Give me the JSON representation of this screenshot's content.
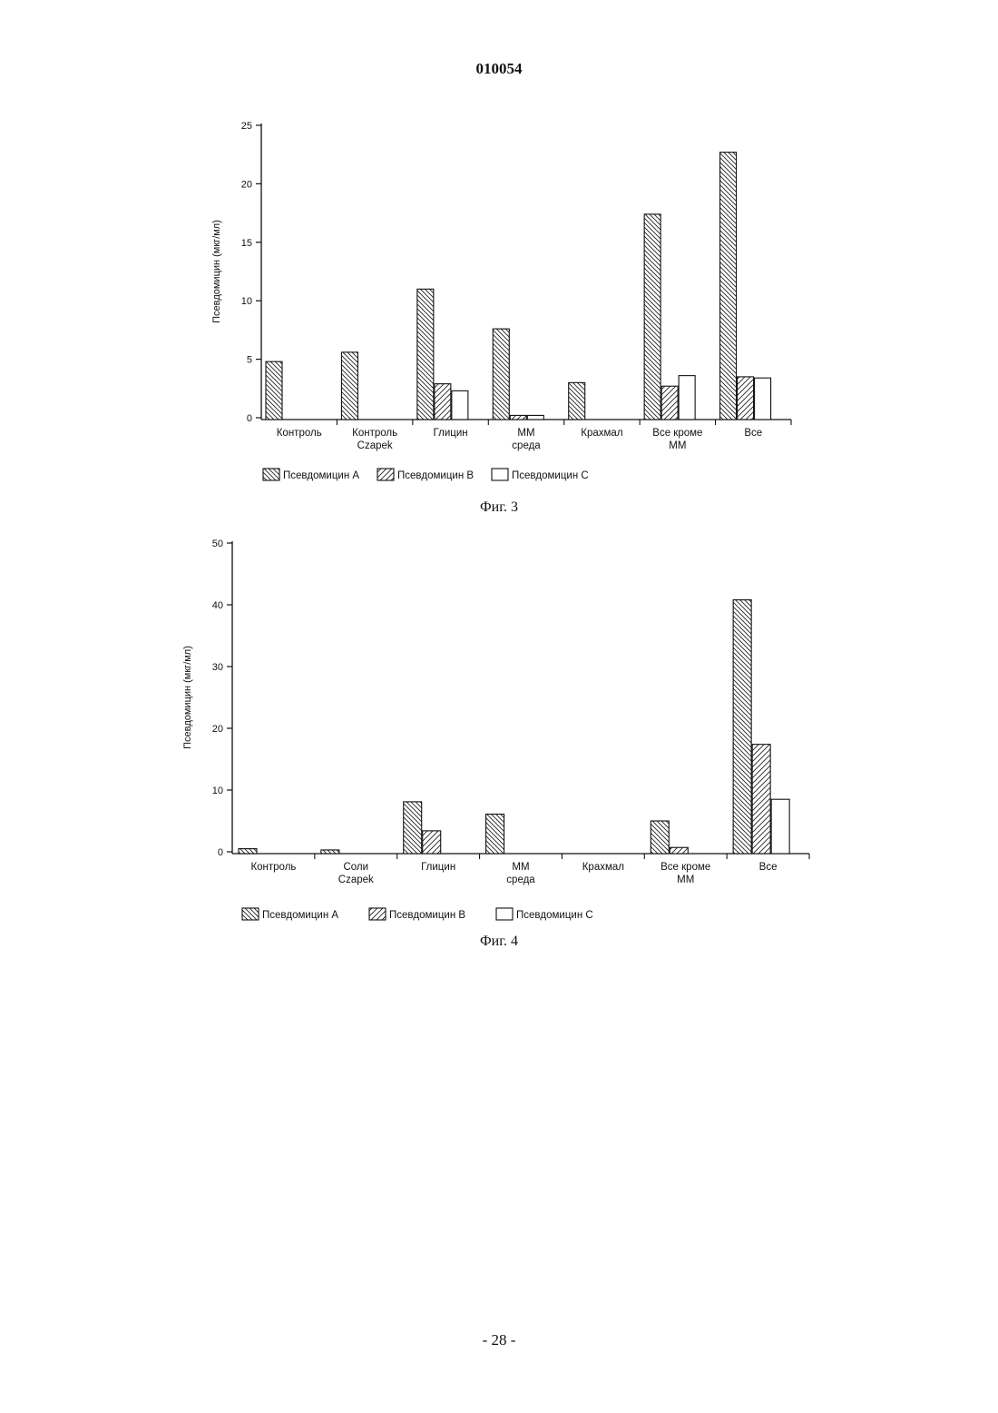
{
  "header": {
    "doc_number": "010054"
  },
  "footer": {
    "page_number": "- 28 -"
  },
  "chart_data": [
    {
      "type": "bar",
      "caption": "Фиг. 3",
      "ylabel": "Псевдомицин (мкг/мл)",
      "ylim": [
        0,
        25
      ],
      "yticks": [
        0,
        5,
        10,
        15,
        20,
        25
      ],
      "categories": [
        [
          "Контроль"
        ],
        [
          "Контроль",
          "Czapek"
        ],
        [
          "Глицин"
        ],
        [
          "ММ",
          "среда"
        ],
        [
          "Крахмал"
        ],
        [
          "Все кроме",
          "ММ"
        ],
        [
          "Все"
        ]
      ],
      "series": [
        {
          "name": "Псевдомицин А",
          "pattern": "hatch-back",
          "values": [
            4.8,
            5.6,
            11.0,
            7.6,
            3.0,
            17.4,
            22.7
          ]
        },
        {
          "name": "Псевдомицин В",
          "pattern": "hatch-fwd",
          "values": [
            0,
            0,
            2.9,
            0.2,
            0,
            2.7,
            3.5
          ]
        },
        {
          "name": "Псевдомицин С",
          "pattern": "empty",
          "values": [
            0,
            0,
            2.3,
            0.2,
            0,
            3.6,
            3.4
          ]
        }
      ],
      "legend_position": "bottom"
    },
    {
      "type": "bar",
      "caption": "Фиг. 4",
      "ylabel": "Псевдомицин  (мкг/мл)",
      "ylim": [
        0,
        50
      ],
      "yticks": [
        0,
        10,
        20,
        30,
        40,
        50
      ],
      "categories": [
        [
          "Контроль"
        ],
        [
          "Соли",
          "Czapek"
        ],
        [
          "Глицин"
        ],
        [
          "ММ",
          "среда"
        ],
        [
          "Крахмал"
        ],
        [
          "Все кроме",
          "ММ"
        ],
        [
          "Все"
        ]
      ],
      "series": [
        {
          "name": "Псевдомицин А",
          "pattern": "hatch-back",
          "values": [
            0.5,
            0.3,
            8.1,
            6.1,
            0,
            5.0,
            40.8
          ]
        },
        {
          "name": "Псевдомицин В",
          "pattern": "hatch-fwd",
          "values": [
            0,
            0,
            3.4,
            0,
            0,
            0.7,
            17.4
          ]
        },
        {
          "name": "Псевдомицин С",
          "pattern": "empty",
          "values": [
            0,
            0,
            0,
            0,
            0,
            0,
            8.5
          ]
        }
      ],
      "legend_position": "bottom"
    }
  ]
}
